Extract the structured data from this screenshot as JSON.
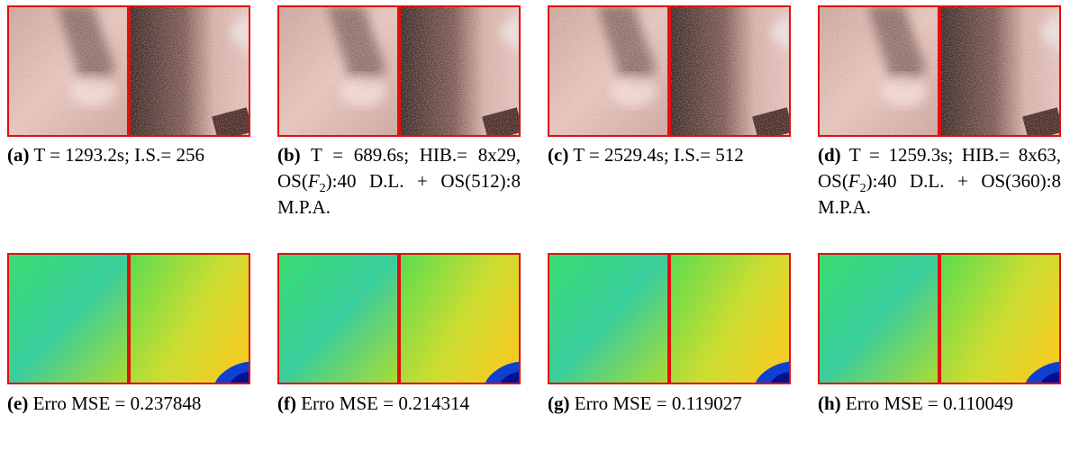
{
  "panels": [
    {
      "label": "(a)",
      "caption": [
        {
          "text": "T = 1293.2s; I.S.= 256"
        }
      ],
      "kind": "photo"
    },
    {
      "label": "(b)",
      "caption": [
        {
          "text": "T = 689.6s; HIB.= 8x29, OS("
        },
        {
          "italic": "F"
        },
        {
          "sub": "2"
        },
        {
          "text": "):40 D.L. + OS(512):8 M.P.A."
        }
      ],
      "kind": "photo"
    },
    {
      "label": "(c)",
      "caption": [
        {
          "text": "T = 2529.4s; I.S.= 512"
        }
      ],
      "kind": "photo"
    },
    {
      "label": "(d)",
      "caption": [
        {
          "text": "T = 1259.3s; HIB.= 8x63, OS("
        },
        {
          "italic": "F"
        },
        {
          "sub": "2"
        },
        {
          "text": "):40 D.L. + OS(360):8 M.P.A."
        }
      ],
      "kind": "photo"
    },
    {
      "label": "(e)",
      "caption": [
        {
          "text": "Erro MSE = 0.237848"
        }
      ],
      "kind": "error"
    },
    {
      "label": "(f)",
      "caption": [
        {
          "text": "Erro MSE = 0.214314"
        }
      ],
      "kind": "error"
    },
    {
      "label": "(g)",
      "caption": [
        {
          "text": "Erro MSE = 0.119027"
        }
      ],
      "kind": "error"
    },
    {
      "label": "(h)",
      "caption": [
        {
          "text": "Erro MSE = 0.110049"
        }
      ],
      "kind": "error"
    }
  ]
}
